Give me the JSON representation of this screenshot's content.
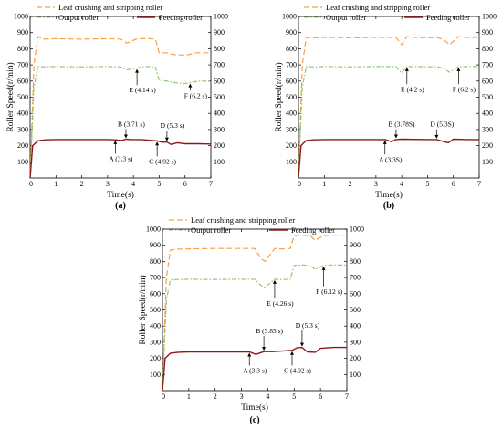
{
  "legend": {
    "leaf_label": "Leaf crushing and stripping roller",
    "output_label": "Output roller",
    "feeding_label": "Feeding roller"
  },
  "colors": {
    "leaf": "#f5a04a",
    "output": "#8cc268",
    "feeding": "#8b1a1a"
  },
  "chart_data": [
    {
      "type": "line",
      "panel_label": "(a)",
      "xlabel": "Time(s)",
      "ylabel": "Roller Speed(r/min)",
      "xlim": [
        0,
        7
      ],
      "ylim": [
        0,
        1000
      ],
      "x_ticks": [
        "0",
        "1",
        "2",
        "3",
        "4",
        "5",
        "6",
        "7"
      ],
      "y_ticks": [
        "100",
        "200",
        "300",
        "400",
        "500",
        "600",
        "700",
        "800",
        "900",
        "1000"
      ],
      "series": [
        {
          "name": "Leaf crushing and stripping roller",
          "key": "leaf",
          "x": [
            0,
            0.15,
            0.3,
            0.5,
            1.0,
            2.0,
            3.0,
            3.5,
            3.75,
            3.9,
            4.14,
            4.3,
            4.6,
            4.85,
            5.0,
            5.3,
            5.5,
            6.0,
            6.2,
            6.4,
            7.0
          ],
          "y": [
            0,
            700,
            875,
            860,
            862,
            860,
            862,
            860,
            835,
            845,
            862,
            862,
            862,
            860,
            775,
            775,
            765,
            760,
            765,
            775,
            775
          ]
        },
        {
          "name": "Output roller",
          "key": "output",
          "x": [
            0,
            0.15,
            0.3,
            0.5,
            1.0,
            2.0,
            3.0,
            3.5,
            3.75,
            4.14,
            4.4,
            4.85,
            5.0,
            5.3,
            5.6,
            6.0,
            6.2,
            6.5,
            7.0
          ],
          "y": [
            0,
            560,
            690,
            688,
            690,
            688,
            690,
            688,
            670,
            680,
            690,
            688,
            605,
            600,
            590,
            585,
            590,
            600,
            600
          ]
        },
        {
          "name": "Feeding roller",
          "key": "feeding",
          "x": [
            0,
            0.1,
            0.3,
            0.6,
            1.0,
            2.0,
            3.0,
            3.3,
            3.55,
            3.71,
            3.9,
            4.3,
            4.92,
            5.1,
            5.3,
            5.45,
            5.7,
            6.0,
            6.5,
            7.0
          ],
          "y": [
            0,
            200,
            230,
            236,
            238,
            238,
            238,
            236,
            232,
            240,
            238,
            238,
            230,
            222,
            222,
            208,
            218,
            212,
            212,
            210
          ]
        }
      ],
      "annotations": [
        {
          "text": "A (3.3 s)",
          "x": 3.3,
          "y": 238,
          "label_y": 105
        },
        {
          "text": "B (3.71 s)",
          "x": 3.71,
          "y": 240,
          "label_y": 320
        },
        {
          "text": "C (4.92 s)",
          "x": 4.92,
          "y": 230,
          "label_y": 88
        },
        {
          "text": "D (5.3 s)",
          "x": 5.3,
          "y": 222,
          "label_y": 310
        },
        {
          "text": "E (4.14 s)",
          "x": 4.14,
          "y": 680,
          "label_y": 530
        },
        {
          "text": "F (6.2 s)",
          "x": 6.2,
          "y": 590,
          "label_y": 495
        }
      ]
    },
    {
      "type": "line",
      "panel_label": "(b)",
      "xlabel": "Time(s)",
      "ylabel": "Roller Speed(r/min)",
      "xlim": [
        0,
        7
      ],
      "ylim": [
        0,
        1000
      ],
      "x_ticks": [
        "0",
        "1",
        "2",
        "3",
        "4",
        "5",
        "6",
        "7"
      ],
      "y_ticks": [
        "100",
        "200",
        "300",
        "400",
        "500",
        "600",
        "700",
        "800",
        "900",
        "1000"
      ],
      "series": [
        {
          "name": "Leaf crushing and stripping roller",
          "key": "leaf",
          "x": [
            0,
            0.15,
            0.3,
            0.5,
            1.0,
            2.0,
            3.0,
            3.78,
            4.0,
            4.2,
            4.5,
            5.0,
            5.35,
            5.6,
            5.85,
            6.2,
            6.5,
            7.0
          ],
          "y": [
            0,
            700,
            870,
            868,
            870,
            868,
            870,
            870,
            825,
            875,
            870,
            868,
            870,
            858,
            825,
            875,
            870,
            870
          ]
        },
        {
          "name": "Output roller",
          "key": "output",
          "x": [
            0,
            0.15,
            0.3,
            0.5,
            1.0,
            2.0,
            3.0,
            3.78,
            4.0,
            4.2,
            4.5,
            5.0,
            5.35,
            5.6,
            5.85,
            6.2,
            6.5,
            7.0
          ],
          "y": [
            0,
            560,
            690,
            688,
            690,
            688,
            690,
            690,
            650,
            690,
            690,
            688,
            690,
            680,
            655,
            690,
            690,
            690
          ]
        },
        {
          "name": "Feeding roller",
          "key": "feeding",
          "x": [
            0,
            0.1,
            0.3,
            0.6,
            1.0,
            2.0,
            3.0,
            3.35,
            3.6,
            3.78,
            4.0,
            5.0,
            5.35,
            5.55,
            5.8,
            6.0,
            6.5,
            7.0
          ],
          "y": [
            0,
            200,
            232,
            236,
            238,
            238,
            238,
            238,
            225,
            238,
            240,
            238,
            238,
            228,
            218,
            240,
            238,
            238
          ]
        }
      ],
      "annotations": [
        {
          "text": "A (3.3S)",
          "x": 3.35,
          "y": 238,
          "label_y": 100
        },
        {
          "text": "B (3.78S)",
          "x": 3.78,
          "y": 240,
          "label_y": 318
        },
        {
          "text": "D (5.3S)",
          "x": 5.35,
          "y": 238,
          "label_y": 318
        },
        {
          "text": "E (4.2 s)",
          "x": 4.2,
          "y": 690,
          "label_y": 535
        },
        {
          "text": "F (6.2 s)",
          "x": 6.2,
          "y": 690,
          "label_y": 535
        }
      ]
    },
    {
      "type": "line",
      "panel_label": "(c)",
      "xlabel": "Time(s)",
      "ylabel": "Roller Speed(r/min)",
      "xlim": [
        0,
        7
      ],
      "ylim": [
        0,
        1000
      ],
      "x_ticks": [
        "0",
        "1",
        "2",
        "3",
        "4",
        "5",
        "6",
        "7"
      ],
      "y_ticks": [
        "100",
        "200",
        "300",
        "400",
        "500",
        "600",
        "700",
        "800",
        "900",
        "1000"
      ],
      "series": [
        {
          "name": "Leaf crushing and stripping roller",
          "key": "leaf",
          "x": [
            0,
            0.15,
            0.3,
            0.5,
            1.0,
            2.0,
            3.0,
            3.5,
            3.75,
            3.9,
            4.26,
            4.5,
            4.85,
            5.0,
            5.3,
            5.6,
            5.8,
            6.12,
            6.4,
            7.0
          ],
          "y": [
            0,
            700,
            870,
            875,
            878,
            880,
            880,
            880,
            815,
            800,
            880,
            878,
            880,
            960,
            962,
            960,
            930,
            960,
            962,
            962
          ]
        },
        {
          "name": "Output roller",
          "key": "output",
          "x": [
            0,
            0.15,
            0.3,
            0.5,
            1.0,
            2.0,
            3.0,
            3.5,
            3.75,
            3.9,
            4.26,
            4.5,
            4.85,
            5.0,
            5.3,
            5.6,
            5.8,
            6.12,
            6.4,
            7.0
          ],
          "y": [
            0,
            560,
            685,
            688,
            690,
            688,
            690,
            690,
            650,
            640,
            690,
            688,
            690,
            775,
            778,
            775,
            750,
            775,
            778,
            778
          ]
        },
        {
          "name": "Feeding roller",
          "key": "feeding",
          "x": [
            0,
            0.1,
            0.3,
            0.6,
            1.0,
            2.0,
            3.0,
            3.3,
            3.55,
            3.85,
            4.2,
            4.92,
            5.1,
            5.3,
            5.5,
            5.8,
            6.0,
            6.5,
            7.0
          ],
          "y": [
            0,
            200,
            232,
            238,
            240,
            240,
            240,
            240,
            225,
            242,
            242,
            250,
            265,
            268,
            240,
            238,
            262,
            268,
            268
          ]
        }
      ],
      "annotations": [
        {
          "text": "A (3.3 s)",
          "x": 3.3,
          "y": 240,
          "label_y": 110
        },
        {
          "text": "B (3.85 s)",
          "x": 3.85,
          "y": 242,
          "label_y": 355
        },
        {
          "text": "C (4.92 s)",
          "x": 4.92,
          "y": 250,
          "label_y": 110
        },
        {
          "text": "D (5.3 s)",
          "x": 5.3,
          "y": 268,
          "label_y": 390
        },
        {
          "text": "E (4.26 s)",
          "x": 4.26,
          "y": 690,
          "label_y": 525
        },
        {
          "text": "F (6.12 s)",
          "x": 6.12,
          "y": 775,
          "label_y": 600
        }
      ]
    }
  ]
}
